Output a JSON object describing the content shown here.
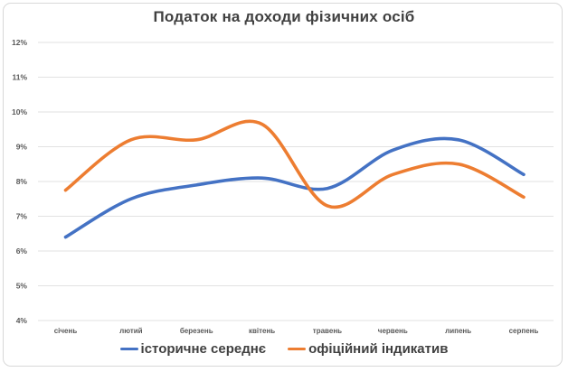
{
  "window": {
    "background": "#ffffff",
    "frame_border_color": "#d8d8d8"
  },
  "chart_data": {
    "type": "line",
    "title": "Податок на доходи фізичних осіб",
    "title_color": "#404040",
    "categories": [
      "січень",
      "лютий",
      "березень",
      "квітень",
      "травень",
      "червень",
      "липень",
      "серпень"
    ],
    "series": [
      {
        "name": "історичне середнє",
        "color": "#4472C4",
        "values": [
          6.4,
          7.5,
          7.9,
          8.1,
          7.8,
          8.9,
          9.2,
          8.2
        ]
      },
      {
        "name": "офіційний індикатив",
        "color": "#ED7D31",
        "values": [
          7.75,
          9.2,
          9.2,
          9.65,
          7.3,
          8.2,
          8.5,
          7.55
        ]
      }
    ],
    "y_axis": {
      "min": 4,
      "max": 12,
      "step": 1,
      "tick_labels": [
        "12%",
        "11%",
        "10%",
        "9%",
        "8%",
        "7%",
        "6%",
        "5%",
        "4%"
      ],
      "tick_color": "#595959"
    },
    "x_axis": {
      "tick_color": "#595959"
    },
    "grid": true,
    "gridline_color": "#e2e2e2",
    "line_style": "smooth",
    "legend_position": "bottom"
  }
}
